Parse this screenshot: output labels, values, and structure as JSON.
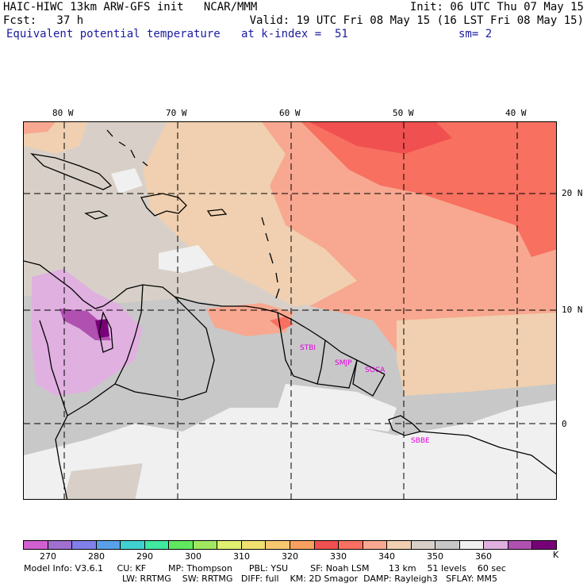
{
  "header": {
    "line1_left": "HAIC-HIWC 13km ARW-GFS init   NCAR/MMM",
    "line1_right": "Init: 06 UTC Thu 07 May 15",
    "line2_left": "Fcst:   37 h",
    "line2_right": "Valid: 19 UTC Fri 08 May 15 (16 LST Fri 08 May 15)",
    "field": "Equivalent potential temperature",
    "level": "at k-index =  51",
    "smooth": "sm= 2"
  },
  "map": {
    "lon_labels": [
      "80 W",
      "70 W",
      "60 W",
      "50 W",
      "40 W"
    ],
    "lat_labels": [
      "20 N",
      "10 N",
      "0"
    ],
    "places": [
      "STBI",
      "SMJP",
      "SOCA",
      "SBBE"
    ]
  },
  "colorbar": {
    "colors": [
      "#d060d0",
      "#a070d0",
      "#8080e8",
      "#5aa0e8",
      "#40d0d0",
      "#40e8a0",
      "#60e860",
      "#a0e860",
      "#e0f070",
      "#f0e070",
      "#f8c870",
      "#f8a060",
      "#f05050",
      "#f87060",
      "#f8a890",
      "#f0d0b0",
      "#d8d0c8",
      "#c8c8c8",
      "#f0f0f0",
      "#e0b0e0",
      "#b050b0",
      "#780078"
    ],
    "tick_labels": [
      "270",
      "280",
      "290",
      "300",
      "310",
      "320",
      "330",
      "340",
      "350",
      "360"
    ],
    "unit": "K"
  },
  "footer": {
    "line1": "Model Info: V3.6.1     CU: KF        MP: Thompson      PBL: YSU        SF: Noah LSM       13 km    51 levels    60 sec",
    "line2": "LW: RRTMG    SW: RRTMG   DIFF: full    KM: 2D Smagor  DAMP: Rayleigh3   SFLAY: MM5"
  }
}
